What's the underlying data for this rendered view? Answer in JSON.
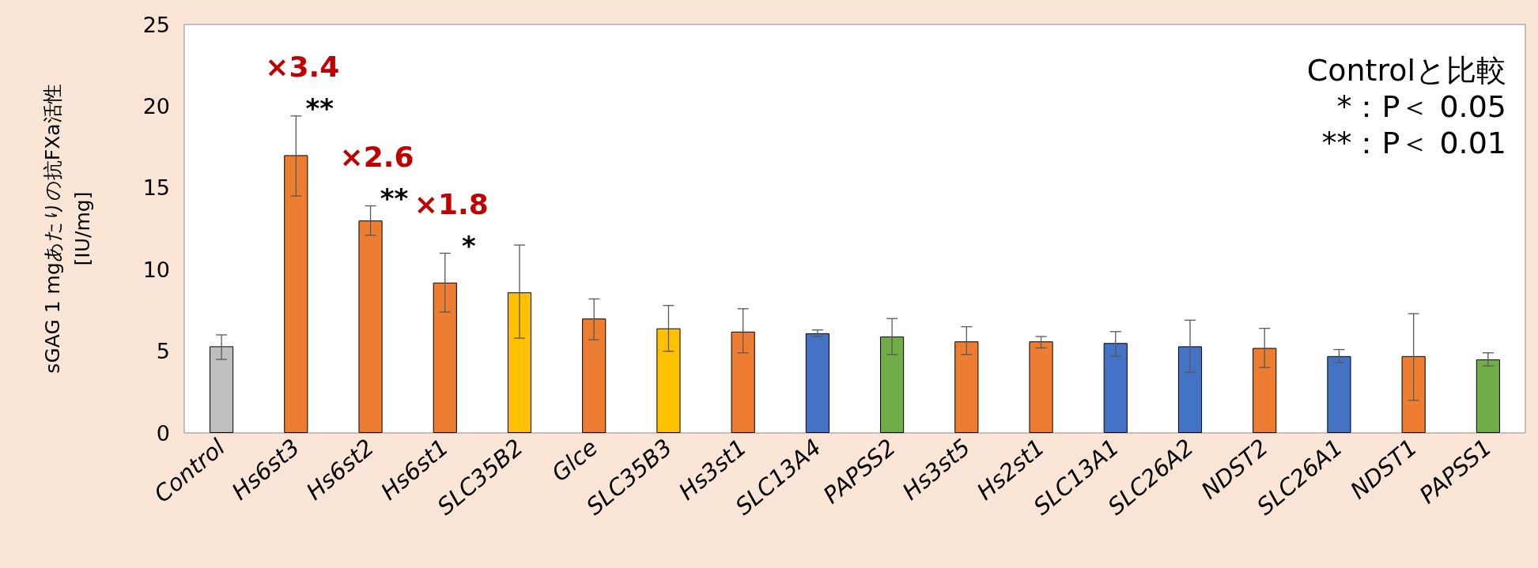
{
  "chart_data": {
    "type": "bar",
    "ylabel": "sGAG 1 mgあたりの抗FXa活性\n[IU/mg]",
    "categories": [
      "Control",
      "Hs6st3",
      "Hs6st2",
      "Hs6st1",
      "SLC35B2",
      "Glce",
      "SLC35B3",
      "Hs3st1",
      "SLC13A4",
      "PAPSS2",
      "Hs3st5",
      "Hs2st1",
      "SLC13A1",
      "SLC26A2",
      "NDST2",
      "SLC26A1",
      "NDST1",
      "PAPSS1"
    ],
    "values": [
      5.3,
      17.0,
      13.0,
      9.2,
      8.6,
      7.0,
      6.4,
      6.2,
      6.1,
      5.9,
      5.6,
      5.6,
      5.5,
      5.3,
      5.2,
      4.7,
      4.7,
      4.5
    ],
    "colors": [
      "#bfbfbf",
      "#ed7d31",
      "#ed7d31",
      "#ed7d31",
      "#ffc000",
      "#ed7d31",
      "#ffc000",
      "#ed7d31",
      "#4472c4",
      "#70ad47",
      "#ed7d31",
      "#ed7d31",
      "#4472c4",
      "#4472c4",
      "#ed7d31",
      "#4472c4",
      "#ed7d31",
      "#70ad47"
    ],
    "errors": [
      [
        4.5,
        6.0
      ],
      [
        14.5,
        19.4
      ],
      [
        12.1,
        13.9
      ],
      [
        7.4,
        11.0
      ],
      [
        5.8,
        11.5
      ],
      [
        5.7,
        8.2
      ],
      [
        5.0,
        7.8
      ],
      [
        4.9,
        7.6
      ],
      [
        5.9,
        6.3
      ],
      [
        4.8,
        7.0
      ],
      [
        4.8,
        6.5
      ],
      [
        5.2,
        5.9
      ],
      [
        4.7,
        6.2
      ],
      [
        3.7,
        6.9
      ],
      [
        4.0,
        6.4
      ],
      [
        4.3,
        5.1
      ],
      [
        2.0,
        7.3
      ],
      [
        4.1,
        4.9
      ]
    ],
    "ylim": [
      0,
      25
    ],
    "yticks": [
      0,
      5,
      10,
      15,
      20,
      25
    ],
    "grid": false,
    "annotations": [
      "×3.4",
      "**",
      "×2.6",
      "**",
      "×1.8",
      "*",
      "Controlと比較",
      "*：P＜ 0.05",
      "**：P＜ 0.01"
    ]
  }
}
